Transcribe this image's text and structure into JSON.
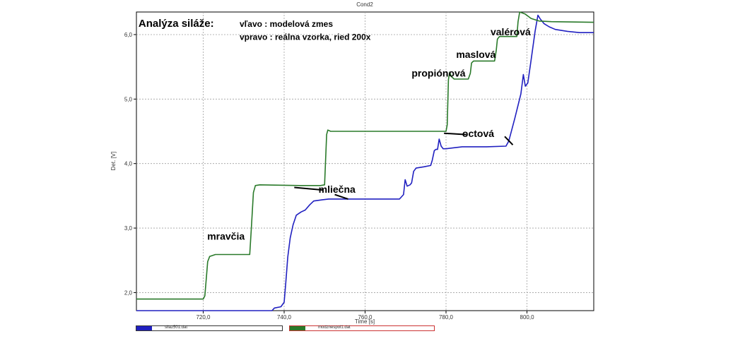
{
  "chart_data": {
    "type": "line",
    "title": "Cond2",
    "xlabel": "Time [s]",
    "ylabel": "Det. [V]",
    "xlim": [
      703.5,
      816.5
    ],
    "ylim": [
      1.72,
      6.35
    ],
    "x_ticks": [
      720,
      740,
      760,
      780,
      800
    ],
    "x_tick_labels": [
      "720,0",
      "740,0",
      "760,0",
      "780,0",
      "800,0"
    ],
    "y_ticks": [
      2,
      3,
      4,
      5,
      6
    ],
    "y_tick_labels": [
      "2,0",
      "3,0",
      "4,0",
      "5,0",
      "6,0"
    ],
    "grid": true,
    "series": [
      {
        "name": "silaz501.dat",
        "color": "#2020c0",
        "points": [
          [
            703.5,
            1.72
          ],
          [
            737.0,
            1.72
          ],
          [
            737.6,
            1.76
          ],
          [
            739.2,
            1.78
          ],
          [
            740.0,
            1.85
          ],
          [
            740.4,
            2.15
          ],
          [
            740.9,
            2.55
          ],
          [
            741.5,
            2.85
          ],
          [
            742.2,
            3.05
          ],
          [
            743.0,
            3.2
          ],
          [
            744.2,
            3.25
          ],
          [
            745.2,
            3.28
          ],
          [
            746.3,
            3.36
          ],
          [
            747.3,
            3.42
          ],
          [
            749.5,
            3.44
          ],
          [
            751.0,
            3.45
          ],
          [
            768.5,
            3.45
          ],
          [
            769.5,
            3.52
          ],
          [
            769.9,
            3.75
          ],
          [
            770.4,
            3.65
          ],
          [
            771.1,
            3.67
          ],
          [
            771.5,
            3.7
          ],
          [
            772.0,
            3.88
          ],
          [
            772.6,
            3.93
          ],
          [
            774.5,
            3.95
          ],
          [
            776.2,
            3.97
          ],
          [
            776.6,
            4.05
          ],
          [
            777.1,
            4.2
          ],
          [
            777.5,
            4.22
          ],
          [
            777.9,
            4.22
          ],
          [
            778.3,
            4.38
          ],
          [
            778.8,
            4.27
          ],
          [
            779.3,
            4.23
          ],
          [
            780.0,
            4.23
          ],
          [
            782.5,
            4.25
          ],
          [
            784.0,
            4.26
          ],
          [
            790.0,
            4.26
          ],
          [
            794.8,
            4.27
          ],
          [
            795.5,
            4.35
          ],
          [
            797.0,
            4.7
          ],
          [
            798.5,
            5.08
          ],
          [
            799.1,
            5.38
          ],
          [
            799.6,
            5.2
          ],
          [
            800.2,
            5.25
          ],
          [
            801.0,
            5.6
          ],
          [
            802.0,
            6.05
          ],
          [
            802.7,
            6.3
          ],
          [
            803.3,
            6.24
          ],
          [
            804.2,
            6.17
          ],
          [
            805.5,
            6.12
          ],
          [
            807.0,
            6.08
          ],
          [
            810.0,
            6.05
          ],
          [
            813.0,
            6.03
          ],
          [
            816.5,
            6.03
          ]
        ]
      },
      {
        "name": "modznespol1.dat",
        "color": "#2a7a2a",
        "points": [
          [
            703.5,
            1.9
          ],
          [
            720.0,
            1.9
          ],
          [
            720.4,
            1.95
          ],
          [
            720.8,
            2.25
          ],
          [
            721.1,
            2.48
          ],
          [
            721.6,
            2.56
          ],
          [
            723.0,
            2.59
          ],
          [
            731.5,
            2.59
          ],
          [
            731.9,
            3.0
          ],
          [
            732.4,
            3.55
          ],
          [
            732.9,
            3.66
          ],
          [
            734.0,
            3.67
          ],
          [
            744.0,
            3.66
          ],
          [
            749.0,
            3.66
          ],
          [
            750.0,
            3.67
          ],
          [
            750.5,
            4.45
          ],
          [
            750.8,
            4.52
          ],
          [
            751.5,
            4.5
          ],
          [
            770.0,
            4.5
          ],
          [
            780.0,
            4.5
          ],
          [
            780.3,
            4.6
          ],
          [
            780.6,
            5.3
          ],
          [
            780.9,
            5.42
          ],
          [
            781.3,
            5.35
          ],
          [
            782.0,
            5.31
          ],
          [
            785.5,
            5.31
          ],
          [
            786.0,
            5.4
          ],
          [
            786.3,
            5.56
          ],
          [
            786.8,
            5.59
          ],
          [
            792.0,
            5.59
          ],
          [
            792.4,
            5.75
          ],
          [
            792.7,
            5.93
          ],
          [
            793.2,
            5.97
          ],
          [
            797.5,
            5.97
          ],
          [
            797.8,
            6.2
          ],
          [
            798.2,
            6.35
          ],
          [
            799.5,
            6.32
          ],
          [
            801.0,
            6.25
          ],
          [
            803.0,
            6.21
          ],
          [
            806.0,
            6.2
          ],
          [
            816.5,
            6.19
          ]
        ]
      }
    ],
    "annotations": [
      {
        "text": "Analýza siláže:",
        "x": 704.0,
        "y": 6.12,
        "style": "big"
      },
      {
        "text": "vľavo : modelová zmes",
        "x": 729.0,
        "y": 6.12,
        "style": "mid"
      },
      {
        "text": "vpravo : reálna vzorka, ried 200x",
        "x": 729.0,
        "y": 5.92,
        "style": "mid"
      },
      {
        "text": "mravčia",
        "x": 721.0,
        "y": 2.82,
        "style": "normal"
      },
      {
        "text": "mliečna",
        "x": 748.5,
        "y": 3.55,
        "style": "normal"
      },
      {
        "text": "propiónová",
        "x": 771.5,
        "y": 5.35,
        "style": "normal"
      },
      {
        "text": "maslová",
        "x": 782.5,
        "y": 5.64,
        "style": "normal"
      },
      {
        "text": "valérová",
        "x": 791.0,
        "y": 5.99,
        "style": "normal"
      },
      {
        "text": "octová",
        "x": 784.0,
        "y": 4.41,
        "style": "normal"
      }
    ],
    "pointer_lines": [
      [
        [
          742.5,
          3.63
        ],
        [
          749.5,
          3.59
        ]
      ],
      [
        [
          752.5,
          3.52
        ],
        [
          755.8,
          3.45
        ]
      ],
      [
        [
          779.5,
          4.47
        ],
        [
          785.0,
          4.45
        ]
      ],
      [
        [
          794.5,
          4.42
        ],
        [
          796.5,
          4.29
        ]
      ]
    ],
    "legend": {
      "placement": "bottom-left"
    }
  }
}
